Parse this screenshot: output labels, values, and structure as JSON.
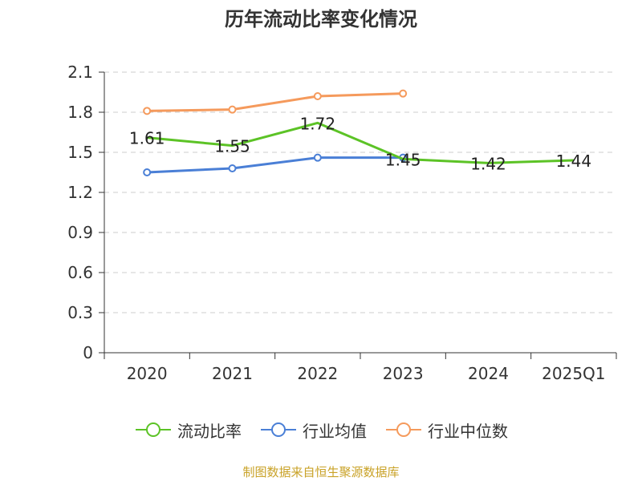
{
  "title": "历年流动比率变化情况",
  "source": "制图数据来自恒生聚源数据库",
  "colors": {
    "current_ratio": "#5cc326",
    "industry_avg": "#4a7fd6",
    "industry_median": "#f59a5c",
    "grid": "#cccccc",
    "axis": "#333333"
  },
  "chart_data": {
    "type": "line",
    "title": "历年流动比率变化情况",
    "categories": [
      "2020",
      "2021",
      "2022",
      "2023",
      "2024",
      "2025Q1"
    ],
    "ylim": [
      0,
      2.1
    ],
    "yticks": [
      "0",
      "0.3",
      "0.6",
      "0.9",
      "1.2",
      "1.5",
      "1.8",
      "2.1"
    ],
    "grid": true,
    "legend_position": "bottom",
    "series": [
      {
        "name": "流动比率",
        "values": [
          1.61,
          1.55,
          1.72,
          1.45,
          1.42,
          1.44
        ],
        "labels": [
          "1.61",
          "1.55",
          "1.72",
          "1.45",
          "1.42",
          "1.44"
        ],
        "markers": false
      },
      {
        "name": "行业均值",
        "values": [
          1.35,
          1.38,
          1.46,
          1.46,
          null,
          null
        ],
        "markers": true
      },
      {
        "name": "行业中位数",
        "values": [
          1.81,
          1.82,
          1.92,
          1.94,
          null,
          null
        ],
        "markers": true
      }
    ]
  },
  "legend": [
    {
      "label": "流动比率",
      "color_key": "current_ratio"
    },
    {
      "label": "行业均值",
      "color_key": "industry_avg"
    },
    {
      "label": "行业中位数",
      "color_key": "industry_median"
    }
  ]
}
